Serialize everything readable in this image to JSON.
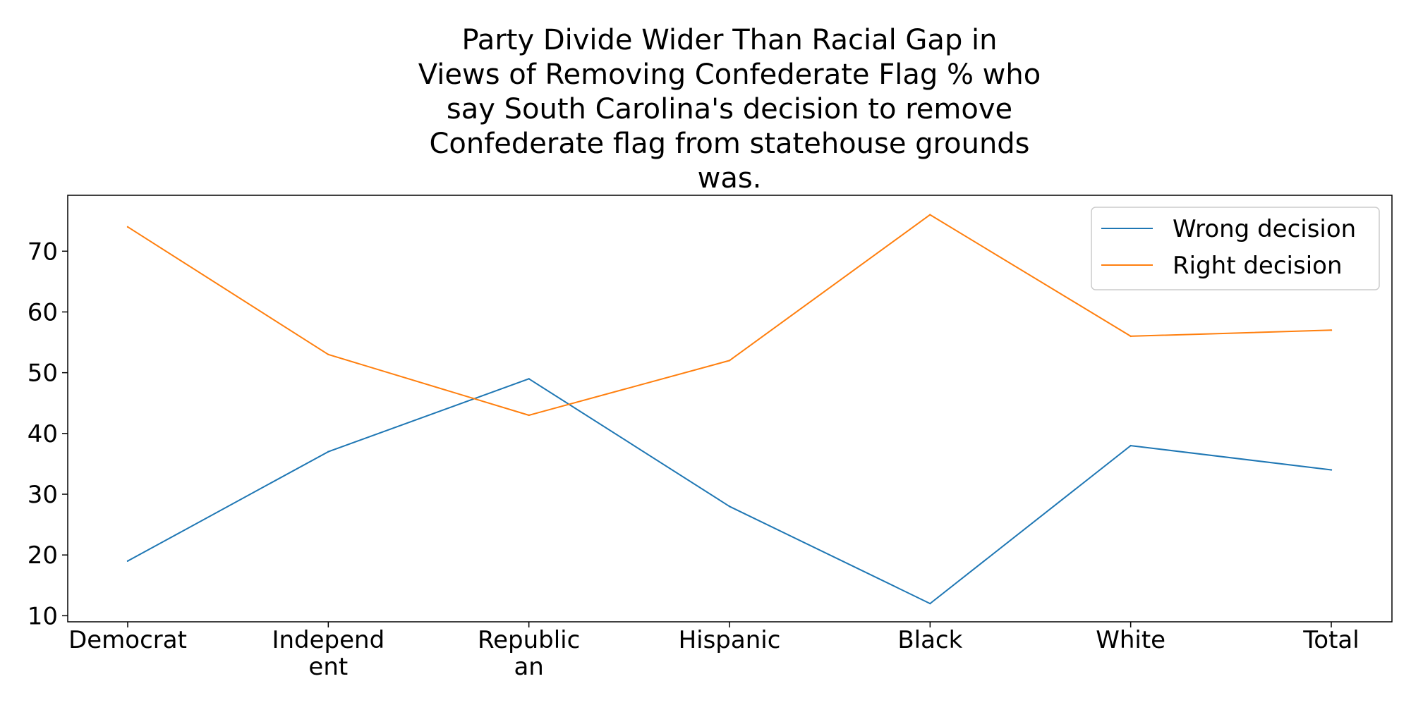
{
  "chart_data": {
    "type": "line",
    "title_lines": [
      "Party Divide Wider Than Racial Gap in",
      "Views of Removing Confederate Flag % who",
      "say South Carolina's decision to remove",
      "Confederate flag from statehouse grounds",
      "was."
    ],
    "categories": [
      [
        "Democrat"
      ],
      [
        "Independ",
        "ent"
      ],
      [
        "Republic",
        "an"
      ],
      [
        "Hispanic"
      ],
      [
        "Black"
      ],
      [
        "White"
      ],
      [
        "Total"
      ]
    ],
    "series": [
      {
        "name": "Wrong decision",
        "color": "#1f77b4",
        "values": [
          19,
          37,
          49,
          28,
          12,
          38,
          34
        ]
      },
      {
        "name": "Right decision",
        "color": "#ff7f0e",
        "values": [
          74,
          53,
          43,
          52,
          76,
          56,
          57
        ]
      }
    ],
    "yticks": [
      10,
      20,
      30,
      40,
      50,
      60,
      70
    ],
    "ylim": [
      9.0,
      79.2
    ],
    "legend_position": "top-right",
    "grid": false
  }
}
